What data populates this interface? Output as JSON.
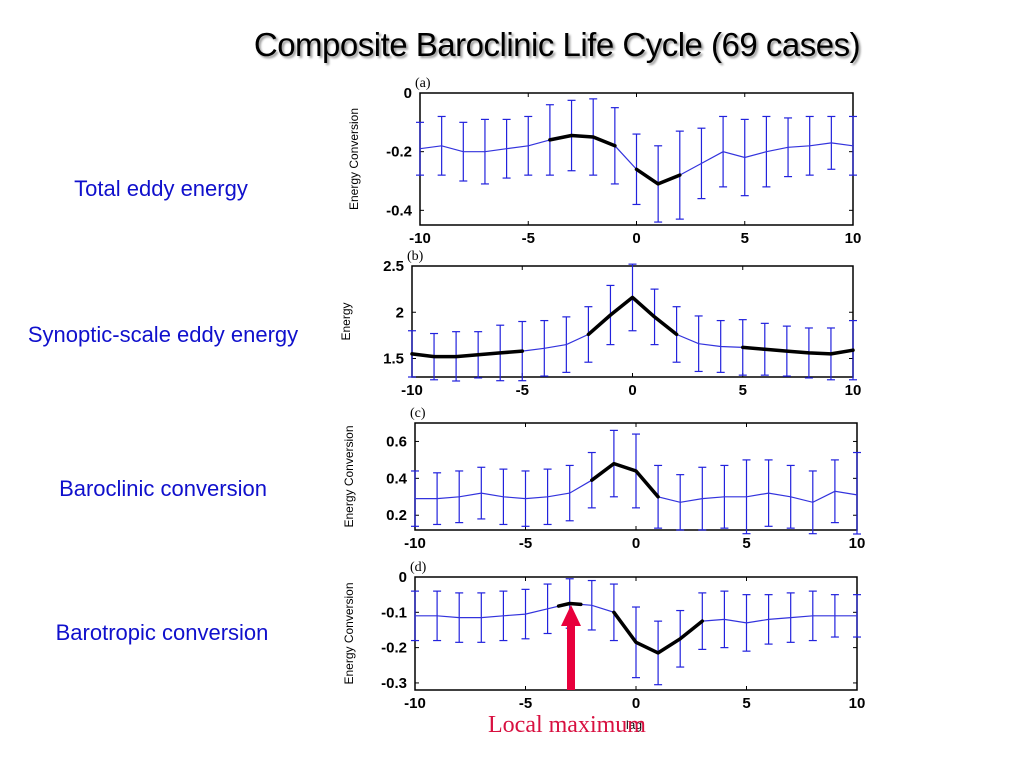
{
  "slide": {
    "title": "Composite Baroclinic Life Cycle (69 cases)",
    "row_labels": [
      "Total eddy energy",
      "Synoptic-scale eddy energy",
      "Baroclinic conversion",
      "Barotropic conversion"
    ],
    "annotation": "Local maximum",
    "annotation_color": "#e8003c"
  },
  "colors": {
    "mean_line": "#3333dd",
    "significant": "#000000",
    "error_bars": "#2222dd"
  },
  "chart_data": [
    {
      "type": "line",
      "panel_label": "(a)",
      "xlabel": "",
      "ylabel": "Energy Conversion",
      "xlim": [
        -10,
        10
      ],
      "ylim": [
        -0.45,
        0
      ],
      "xticks": [
        -10,
        -5,
        0,
        5,
        10
      ],
      "yticks": [
        0,
        -0.2,
        -0.4
      ],
      "ytick_labels": [
        "0",
        "-0.2",
        "-0.4"
      ],
      "x": [
        -10,
        -9,
        -8,
        -7,
        -6,
        -5,
        -4,
        -3,
        -2,
        -1,
        0,
        1,
        2,
        3,
        4,
        5,
        6,
        7,
        8,
        9,
        10
      ],
      "y": [
        -0.19,
        -0.18,
        -0.2,
        -0.2,
        -0.19,
        -0.18,
        -0.16,
        -0.145,
        -0.15,
        -0.18,
        -0.26,
        -0.31,
        -0.28,
        -0.24,
        -0.2,
        -0.22,
        -0.2,
        -0.185,
        -0.18,
        -0.17,
        -0.18
      ],
      "err": [
        0.09,
        0.1,
        0.1,
        0.11,
        0.1,
        0.1,
        0.12,
        0.12,
        0.13,
        0.13,
        0.12,
        0.13,
        0.15,
        0.12,
        0.12,
        0.13,
        0.12,
        0.1,
        0.1,
        0.09,
        0.1
      ],
      "significant_ranges": [
        [
          -4,
          -1
        ],
        [
          0,
          2
        ]
      ]
    },
    {
      "type": "line",
      "panel_label": "(b)",
      "xlabel": "",
      "ylabel": "Energy",
      "xlim": [
        -10,
        10
      ],
      "ylim": [
        1.3,
        2.5
      ],
      "xticks": [
        -10,
        -5,
        0,
        5,
        10
      ],
      "yticks": [
        2.5,
        2,
        1.5
      ],
      "ytick_labels": [
        "2.5",
        "2",
        "1.5"
      ],
      "x": [
        -10,
        -9,
        -8,
        -7,
        -6,
        -5,
        -4,
        -3,
        -2,
        -1,
        0,
        1,
        2,
        3,
        4,
        5,
        6,
        7,
        8,
        9,
        10
      ],
      "y": [
        1.55,
        1.52,
        1.52,
        1.54,
        1.56,
        1.58,
        1.61,
        1.65,
        1.76,
        1.97,
        2.16,
        1.95,
        1.76,
        1.66,
        1.63,
        1.62,
        1.6,
        1.58,
        1.56,
        1.55,
        1.59
      ],
      "err": [
        0.25,
        0.25,
        0.27,
        0.25,
        0.3,
        0.32,
        0.3,
        0.3,
        0.3,
        0.32,
        0.36,
        0.3,
        0.3,
        0.3,
        0.28,
        0.3,
        0.28,
        0.27,
        0.27,
        0.28,
        0.32
      ],
      "significant_ranges": [
        [
          -10,
          -5
        ],
        [
          -2,
          2
        ],
        [
          5,
          10
        ]
      ]
    },
    {
      "type": "line",
      "panel_label": "(c)",
      "xlabel": "",
      "ylabel": "Energy Conversion",
      "xlim": [
        -10,
        10
      ],
      "ylim": [
        0.12,
        0.7
      ],
      "xticks": [
        -10,
        -5,
        0,
        5,
        10
      ],
      "yticks": [
        0.6,
        0.4,
        0.2
      ],
      "ytick_labels": [
        "0.6",
        "0.4",
        "0.2"
      ],
      "x": [
        -10,
        -9,
        -8,
        -7,
        -6,
        -5,
        -4,
        -3,
        -2,
        -1,
        0,
        1,
        2,
        3,
        4,
        5,
        6,
        7,
        8,
        9,
        10
      ],
      "y": [
        0.29,
        0.29,
        0.3,
        0.32,
        0.3,
        0.29,
        0.3,
        0.32,
        0.39,
        0.48,
        0.44,
        0.3,
        0.27,
        0.29,
        0.3,
        0.3,
        0.32,
        0.3,
        0.27,
        0.33,
        0.31
      ],
      "err": [
        0.15,
        0.14,
        0.14,
        0.14,
        0.15,
        0.15,
        0.15,
        0.15,
        0.15,
        0.18,
        0.2,
        0.17,
        0.15,
        0.17,
        0.17,
        0.2,
        0.18,
        0.17,
        0.17,
        0.17,
        0.23
      ],
      "significant_ranges": [
        [
          -2,
          1
        ]
      ]
    },
    {
      "type": "line",
      "panel_label": "(d)",
      "xlabel": "lag",
      "ylabel": "Energy Conversion",
      "xlim": [
        -10,
        10
      ],
      "ylim": [
        -0.32,
        0
      ],
      "xticks": [
        -10,
        -5,
        0,
        5,
        10
      ],
      "yticks": [
        0,
        -0.1,
        -0.2,
        -0.3
      ],
      "ytick_labels": [
        "0",
        "-0.1",
        "-0.2",
        "-0.3"
      ],
      "x": [
        -10,
        -9,
        -8,
        -7,
        -6,
        -5,
        -4,
        -3,
        -2,
        -1,
        0,
        1,
        2,
        3,
        4,
        5,
        6,
        7,
        8,
        9,
        10
      ],
      "y": [
        -0.11,
        -0.11,
        -0.115,
        -0.115,
        -0.11,
        -0.105,
        -0.09,
        -0.075,
        -0.08,
        -0.1,
        -0.185,
        -0.215,
        -0.175,
        -0.125,
        -0.12,
        -0.13,
        -0.12,
        -0.115,
        -0.11,
        -0.11,
        -0.11
      ],
      "err": [
        0.07,
        0.07,
        0.07,
        0.07,
        0.07,
        0.07,
        0.07,
        0.07,
        0.07,
        0.08,
        0.1,
        0.09,
        0.08,
        0.08,
        0.08,
        0.08,
        0.07,
        0.07,
        0.07,
        0.06,
        0.06
      ],
      "significant_ranges": [
        [
          -3.5,
          -2.5
        ],
        [
          -1,
          3
        ]
      ]
    }
  ]
}
